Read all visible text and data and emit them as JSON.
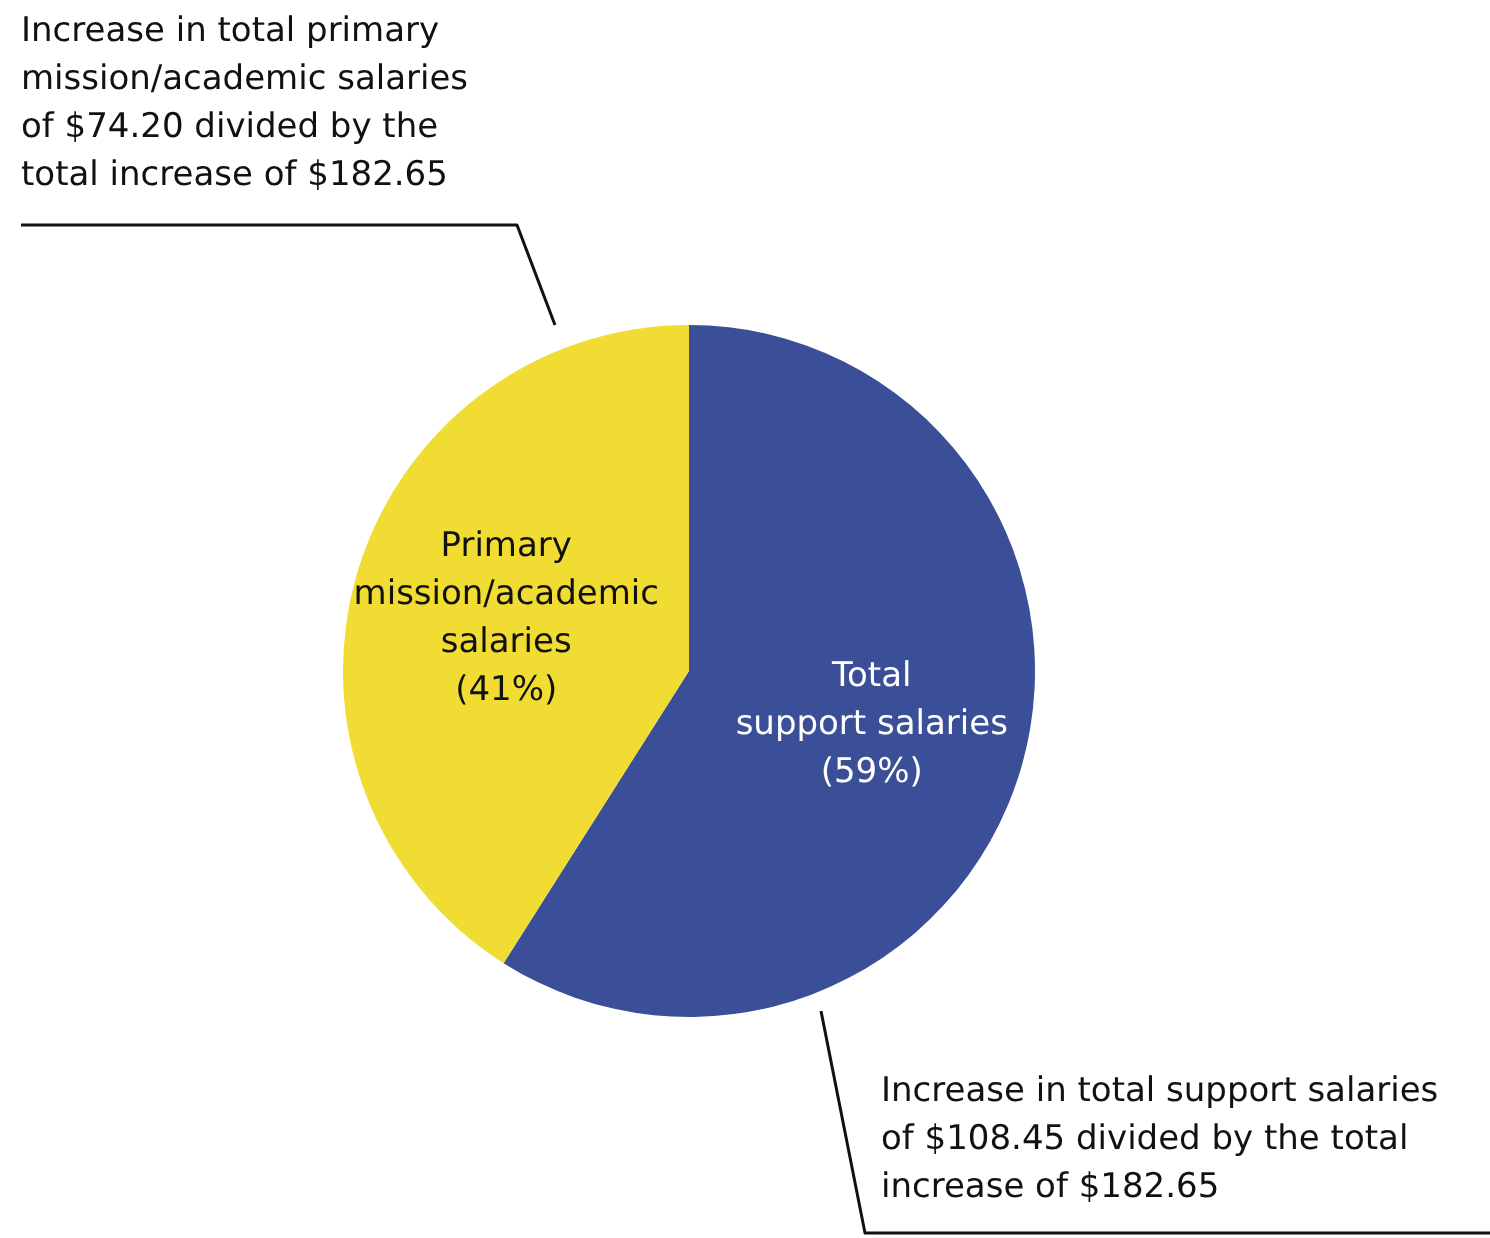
{
  "chart_data": {
    "type": "pie",
    "categories": [
      "Total\nsupport salaries",
      "Primary\nmission/academic\nsalaries"
    ],
    "values": [
      59,
      41
    ],
    "colors": [
      "#3a4f97",
      "#f0dc33"
    ],
    "value_labels": [
      "(59%)",
      "(41%)"
    ],
    "annotations": [
      "Increase in total primary\nmission/academic salaries\nof $74.20 divided by the\ntotal increase of $182.65",
      "Increase in total support salaries\nof $108.45 divided by the total\nincrease of $182.65"
    ]
  }
}
